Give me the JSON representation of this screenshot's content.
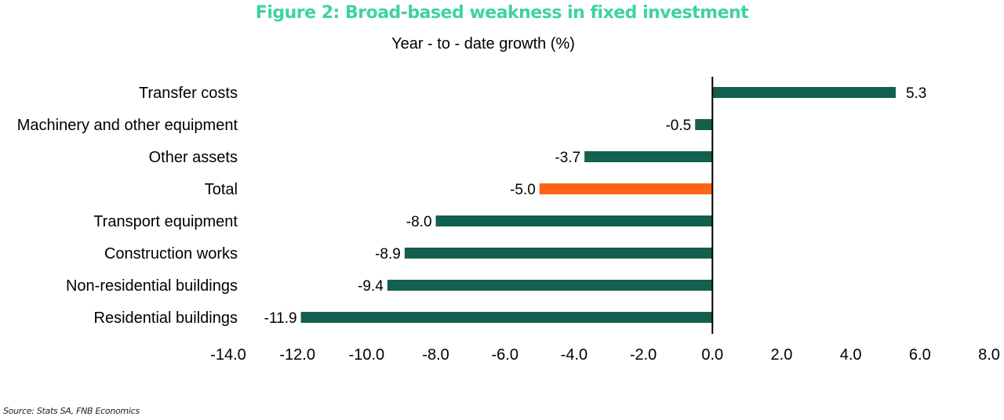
{
  "title": "Figure 2: Broad-based weakness in fixed investment",
  "subtitle": "Year  - to  - date growth (%)",
  "source": "Source: Stats SA, FNB Economics",
  "colors": {
    "title": "#3ed3a0",
    "bar": "#12604d",
    "highlight": "#ff6315"
  },
  "chart_data": {
    "type": "bar",
    "orientation": "horizontal",
    "categories": [
      "Transfer costs",
      "Machinery and other equipment",
      "Other assets",
      "Total",
      "Transport equipment",
      "Construction works",
      "Non-residential buildings",
      "Residential buildings"
    ],
    "values": [
      5.3,
      -0.5,
      -3.7,
      -5.0,
      -8.0,
      -8.9,
      -9.4,
      -11.9
    ],
    "value_labels": [
      "5.3",
      "-0.5",
      "-3.7",
      "-5.0",
      "-8.0",
      "-8.9",
      "-9.4",
      "-11.9"
    ],
    "highlight_category": "Total",
    "xlim": [
      -14,
      8
    ],
    "xticks": [
      -14,
      -12,
      -10,
      -8,
      -6,
      -4,
      -2,
      0,
      2,
      4,
      6,
      8
    ],
    "xtick_labels": [
      "-14.0",
      "-12.0",
      "-10.0",
      "-8.0",
      "-6.0",
      "-4.0",
      "-2.0",
      "0.0",
      "2.0",
      "4.0",
      "6.0",
      "8.0"
    ],
    "grid": false,
    "legend": "none"
  }
}
